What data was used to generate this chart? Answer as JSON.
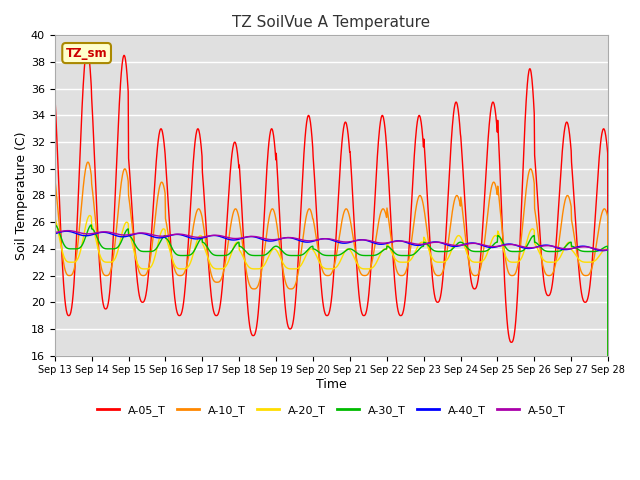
{
  "title": "TZ SoilVue A Temperature",
  "xlabel": "Time",
  "ylabel": "Soil Temperature (C)",
  "ylim": [
    16,
    40
  ],
  "yticks": [
    16,
    18,
    20,
    22,
    24,
    26,
    28,
    30,
    32,
    34,
    36,
    38,
    40
  ],
  "background_color": "#e0e0e0",
  "fig_background": "#ffffff",
  "annotation_text": "TZ_sm",
  "annotation_fx": 0.02,
  "annotation_fy": 0.97,
  "series_colors": {
    "A-05_T": "#ff0000",
    "A-10_T": "#ff8800",
    "A-20_T": "#ffdd00",
    "A-30_T": "#00bb00",
    "A-40_T": "#0000ff",
    "A-50_T": "#aa00aa"
  },
  "legend_labels": [
    "A-05_T",
    "A-10_T",
    "A-20_T",
    "A-30_T",
    "A-40_T",
    "A-50_T"
  ],
  "xtick_labels": [
    "Sep 13",
    "Sep 14",
    "Sep 15",
    "Sep 16",
    "Sep 17",
    "Sep 18",
    "Sep 19",
    "Sep 20",
    "Sep 21",
    "Sep 22",
    "Sep 23",
    "Sep 24",
    "Sep 25",
    "Sep 26",
    "Sep 27",
    "Sep 28"
  ],
  "days": 15
}
